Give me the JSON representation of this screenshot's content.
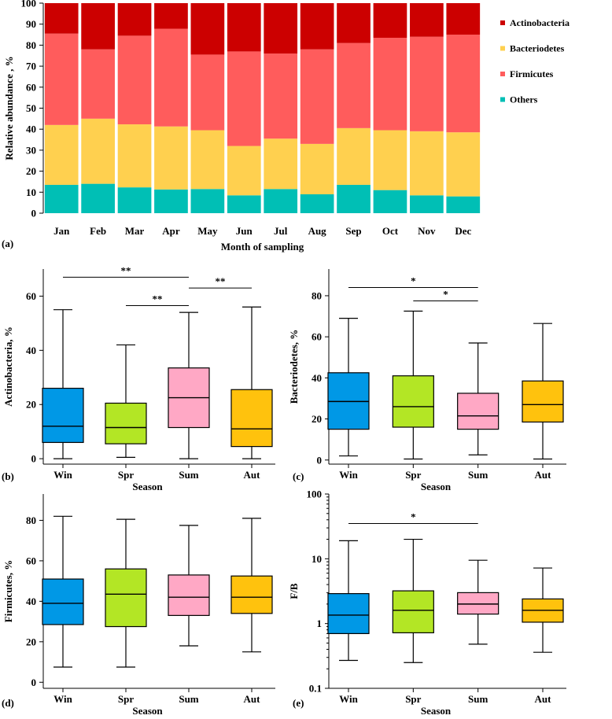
{
  "colors": {
    "Actinobacteria": "#cc0000",
    "Bacteriodetes": "#ffd04f",
    "Firmicutes": "#ff5c5c",
    "Others": "#00bfb5",
    "Win": "#0098e6",
    "Spr": "#b3e625",
    "Sum": "#ffa8c5",
    "Aut": "#ffc20d"
  },
  "chart_data": [
    {
      "id": "a",
      "panel_label": "(a)",
      "type": "bar",
      "stacked": true,
      "xlabel": "Month of sampling",
      "ylabel": "Relative abundance , %",
      "ylim": [
        0,
        100
      ],
      "yticks": [
        0,
        10,
        20,
        30,
        40,
        50,
        60,
        70,
        80,
        90,
        100
      ],
      "categories": [
        "Jan",
        "Feb",
        "Mar",
        "Apr",
        "May",
        "Jun",
        "Jul",
        "Aug",
        "Sep",
        "Oct",
        "Nov",
        "Dec"
      ],
      "legend_position": "right",
      "series": [
        {
          "name": "Others",
          "values": [
            13.5,
            14,
            12.3,
            11.3,
            11.5,
            8.5,
            11.5,
            9,
            13.5,
            11,
            8.5,
            8
          ]
        },
        {
          "name": "Bacteriodetes",
          "values": [
            28.5,
            31,
            30,
            30,
            28,
            23.5,
            24,
            24,
            27,
            28.5,
            30.5,
            30.5
          ]
        },
        {
          "name": "Firmicutes",
          "values": [
            43.5,
            33,
            42.2,
            46.5,
            36,
            45,
            40.5,
            45,
            40.5,
            44,
            45,
            46.5
          ]
        },
        {
          "name": "Actinobacteria",
          "values": [
            14.5,
            22,
            15.5,
            12.2,
            24.5,
            23,
            24,
            22,
            19,
            16.5,
            16,
            15
          ]
        }
      ],
      "legend": [
        "Actinobacteria",
        "Bacteriodetes",
        "Firmicutes",
        "Others"
      ]
    },
    {
      "id": "b",
      "panel_label": "(b)",
      "type": "box",
      "xlabel": "Season",
      "ylabel": "Actinobacteria, %",
      "ylim": [
        -2,
        70
      ],
      "yticks": [
        0,
        20,
        40,
        60
      ],
      "yscale": "linear",
      "categories": [
        "Win",
        "Spr",
        "Sum",
        "Aut"
      ],
      "boxes": [
        {
          "min": 0,
          "q1": 6,
          "median": 12,
          "q3": 26,
          "max": 55
        },
        {
          "min": 0.5,
          "q1": 5.5,
          "median": 11.5,
          "q3": 20.5,
          "max": 42
        },
        {
          "min": 0,
          "q1": 11.5,
          "median": 22.5,
          "q3": 33.5,
          "max": 54
        },
        {
          "min": 0,
          "q1": 4.5,
          "median": 11,
          "q3": 25.5,
          "max": 56
        }
      ],
      "significance": [
        {
          "from": 0,
          "to": 2,
          "y": 67,
          "label": "**"
        },
        {
          "from": 1,
          "to": 2,
          "y": 56.5,
          "label": "**"
        },
        {
          "from": 2,
          "to": 3,
          "y": 63,
          "label": "**"
        }
      ]
    },
    {
      "id": "c",
      "panel_label": "(c)",
      "type": "box",
      "xlabel": "Season",
      "ylabel": "Bacteriodetes, %",
      "ylim": [
        -2,
        93
      ],
      "yticks": [
        0,
        20,
        40,
        60,
        80
      ],
      "yscale": "linear",
      "categories": [
        "Win",
        "Spr",
        "Sum",
        "Aut"
      ],
      "boxes": [
        {
          "min": 2,
          "q1": 15,
          "median": 28.5,
          "q3": 42.5,
          "max": 69
        },
        {
          "min": 0.5,
          "q1": 16,
          "median": 26,
          "q3": 41,
          "max": 72.5
        },
        {
          "min": 2.5,
          "q1": 15,
          "median": 21.5,
          "q3": 32.5,
          "max": 57
        },
        {
          "min": 0.5,
          "q1": 18.5,
          "median": 27,
          "q3": 38.5,
          "max": 66.5
        }
      ],
      "significance": [
        {
          "from": 0,
          "to": 2,
          "y": 84,
          "label": "*"
        },
        {
          "from": 1,
          "to": 2,
          "y": 77.5,
          "label": "*"
        }
      ]
    },
    {
      "id": "d",
      "panel_label": "(d)",
      "type": "box",
      "xlabel": "Season",
      "ylabel": "Firmicutes, %",
      "ylim": [
        -3,
        93
      ],
      "yticks": [
        0,
        20,
        40,
        60,
        80
      ],
      "yscale": "linear",
      "categories": [
        "Win",
        "Spr",
        "Sum",
        "Aut"
      ],
      "boxes": [
        {
          "min": 7.5,
          "q1": 28.5,
          "median": 39,
          "q3": 51,
          "max": 82
        },
        {
          "min": 7.5,
          "q1": 27.5,
          "median": 43.5,
          "q3": 56,
          "max": 80.5
        },
        {
          "min": 18,
          "q1": 33,
          "median": 42,
          "q3": 53,
          "max": 77.5
        },
        {
          "min": 15,
          "q1": 34,
          "median": 42,
          "q3": 52.5,
          "max": 81
        }
      ],
      "significance": []
    },
    {
      "id": "e",
      "panel_label": "(e)",
      "type": "box",
      "xlabel": "Season",
      "ylabel": "F/B",
      "ylim": [
        0.1,
        100
      ],
      "yticks": [
        0.1,
        1,
        10,
        100
      ],
      "ytick_labels": [
        "0.1",
        "1",
        "10",
        "100"
      ],
      "yscale": "log",
      "categories": [
        "Win",
        "Spr",
        "Sum",
        "Aut"
      ],
      "boxes": [
        {
          "min": 0.27,
          "q1": 0.7,
          "median": 1.35,
          "q3": 2.9,
          "max": 19
        },
        {
          "min": 0.25,
          "q1": 0.72,
          "median": 1.6,
          "q3": 3.2,
          "max": 20
        },
        {
          "min": 0.48,
          "q1": 1.4,
          "median": 2,
          "q3": 3,
          "max": 9.5
        },
        {
          "min": 0.36,
          "q1": 1.05,
          "median": 1.6,
          "q3": 2.4,
          "max": 7.2
        }
      ],
      "significance": [
        {
          "from": 0,
          "to": 2,
          "y": 35,
          "label": "*"
        }
      ]
    }
  ]
}
